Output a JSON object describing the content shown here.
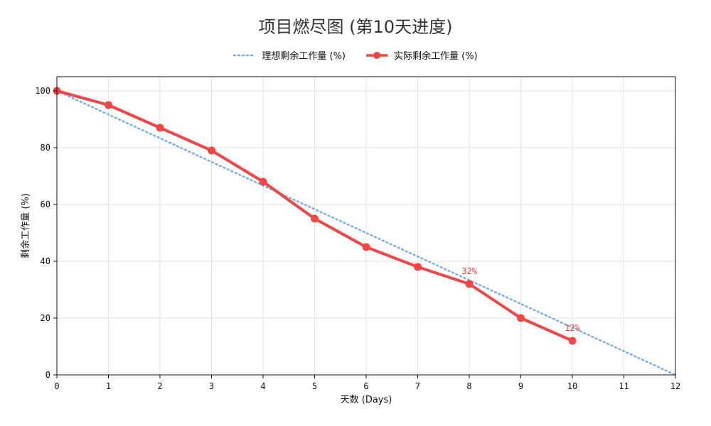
{
  "chart_data": {
    "type": "line",
    "title": "项目燃尽图 (第10天进度)",
    "xlabel": "天数 (Days)",
    "ylabel": "剩余工作量 (%)",
    "xlim": [
      0,
      12
    ],
    "ylim": [
      0,
      105
    ],
    "x_ticks": [
      0,
      1,
      2,
      3,
      4,
      5,
      6,
      7,
      8,
      9,
      10,
      11,
      12
    ],
    "y_ticks": [
      0,
      20,
      40,
      60,
      80,
      100
    ],
    "grid": true,
    "legend_position": "top-center",
    "series": [
      {
        "name": "理想剩余工作量 (%)",
        "style": "dotted",
        "color": "#7aaee6",
        "x": [
          0,
          12
        ],
        "y": [
          100,
          0
        ]
      },
      {
        "name": "实际剩余工作量 (%)",
        "style": "solid-with-markers",
        "color": "#f24646",
        "x": [
          0,
          1,
          2,
          3,
          4,
          5,
          6,
          7,
          8,
          9,
          10
        ],
        "y": [
          100,
          95,
          87,
          79,
          68,
          55,
          45,
          38,
          32,
          20,
          12
        ]
      }
    ],
    "annotations": [
      {
        "x": 8,
        "y": 32,
        "text": "32%"
      },
      {
        "x": 10,
        "y": 12,
        "text": "12%"
      }
    ]
  }
}
